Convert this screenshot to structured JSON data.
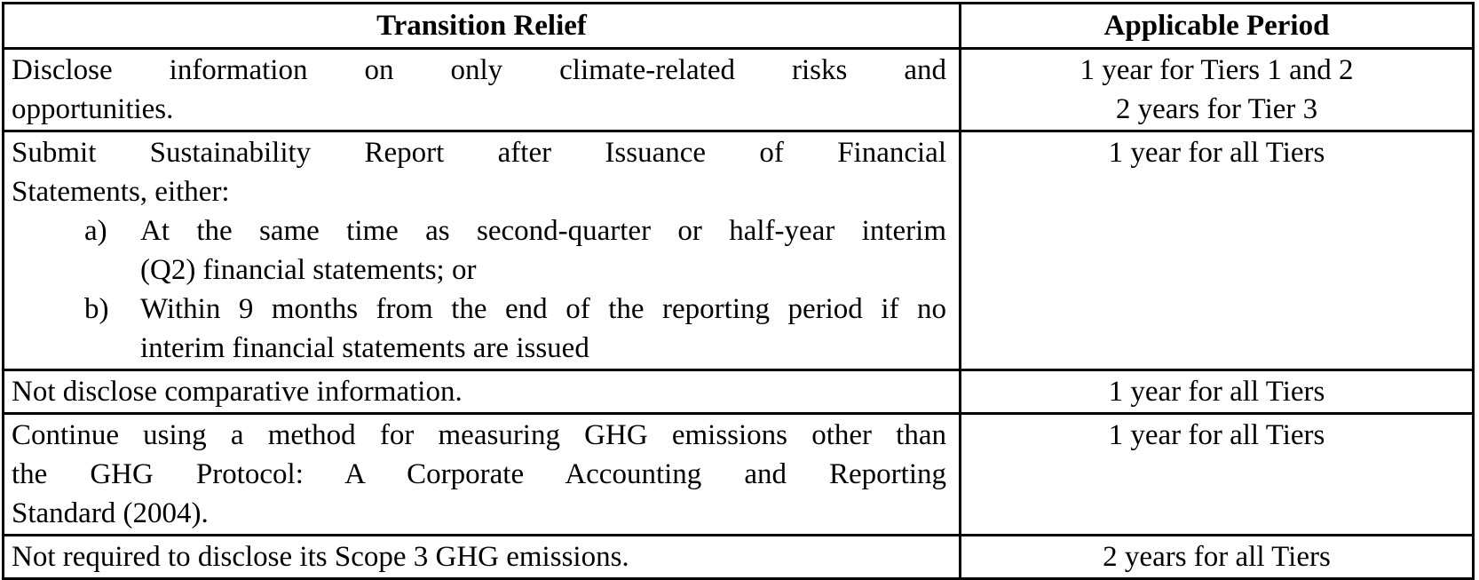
{
  "page": {
    "background_color": "#ffffff",
    "text_color": "#000000",
    "border_color": "#000000"
  },
  "table": {
    "headers": [
      {
        "label": "Transition Relief"
      },
      {
        "label": "Applicable Period"
      }
    ],
    "rows": [
      {
        "relief_lines": [
          "Disclose information on only climate-related risks and",
          "opportunities."
        ],
        "period_lines": [
          "1 year for Tiers 1 and 2",
          "2 years for Tier 3"
        ]
      },
      {
        "relief_lines": [
          "Submit Sustainability Report after Issuance of Financial",
          "Statements, either:"
        ],
        "list_items": [
          {
            "marker": "a)",
            "lines": [
              "At the same time as second-quarter or half-year interim",
              "(Q2) financial statements; or"
            ]
          },
          {
            "marker": "b)",
            "lines": [
              "Within 9 months from the end of the reporting period if no",
              "interim financial statements are issued"
            ]
          }
        ],
        "period_lines": [
          "1 year for all Tiers"
        ]
      },
      {
        "relief_lines": [
          "Not disclose comparative information."
        ],
        "period_lines": [
          "1 year for all Tiers"
        ]
      },
      {
        "relief_lines": [
          "Continue using a method for measuring GHG emissions other than",
          "the GHG Protocol: A Corporate Accounting and Reporting",
          "Standard (2004)."
        ],
        "period_lines": [
          "1 year for all Tiers"
        ]
      },
      {
        "relief_lines": [
          "Not required to disclose its Scope 3 GHG emissions."
        ],
        "period_lines": [
          "2 years for all Tiers"
        ]
      }
    ]
  }
}
